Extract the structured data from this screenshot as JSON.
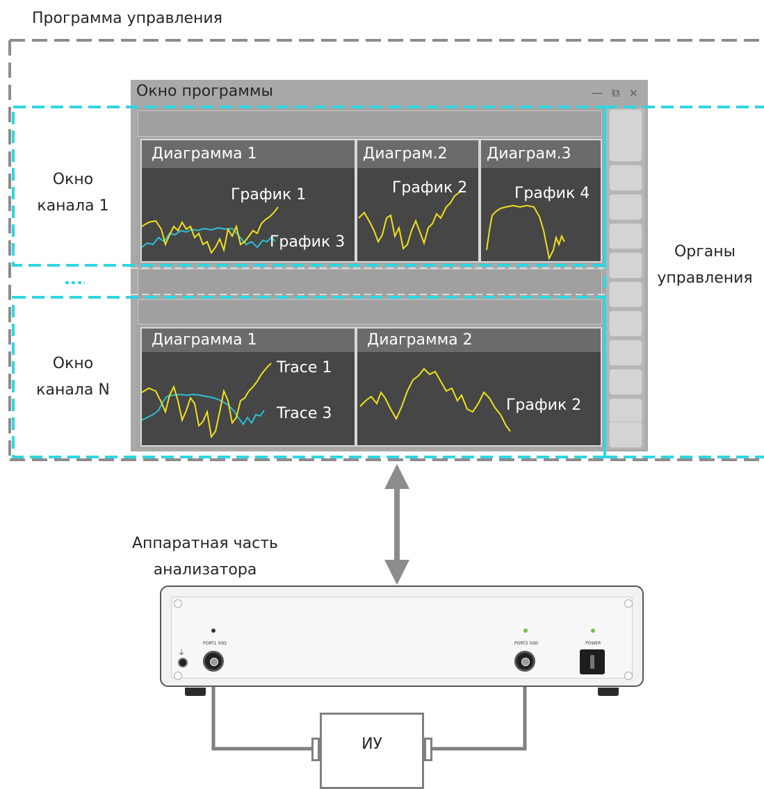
{
  "labels": {
    "program": "Программа управления",
    "channel1": [
      "Окно",
      "канала 1"
    ],
    "ellipsis": "...",
    "channelN": [
      "Окно",
      "канала N"
    ],
    "controls": [
      "Органы",
      "управления"
    ],
    "hardware": [
      "Аппаратная часть",
      "анализатора"
    ],
    "dut": "ИУ"
  },
  "window": {
    "title": "Окно программы",
    "controls": "— ⧉ ×"
  },
  "channel1": {
    "diagrams": [
      {
        "title": "Диаграмма 1",
        "traces": [
          "График 1",
          "График 3"
        ]
      },
      {
        "title": "Диаграм.2",
        "traces": [
          "График 2"
        ]
      },
      {
        "title": "Диаграм.3",
        "traces": [
          "График 4"
        ]
      }
    ]
  },
  "channelN": {
    "diagrams": [
      {
        "title": "Диаграмма 1",
        "traces": [
          "Trace 1",
          "Trace 3"
        ]
      },
      {
        "title": "Диаграмма 2",
        "traces": [
          "График 2"
        ]
      }
    ]
  },
  "hardware": {
    "port1": "PORT1 50Ω",
    "port2": "PORT2 50Ω",
    "power": "POWER"
  },
  "colors": {
    "dash_gray": "#8c8c8c",
    "dash_cyan": "#2fd6e0",
    "trace_yellow": "#f2e21b",
    "trace_cyan": "#2cc0d8",
    "led_green": "#6cc24a"
  },
  "icons": [
    "minimize-icon",
    "restore-icon",
    "close-icon",
    "power-switch-icon",
    "ground-icon"
  ]
}
